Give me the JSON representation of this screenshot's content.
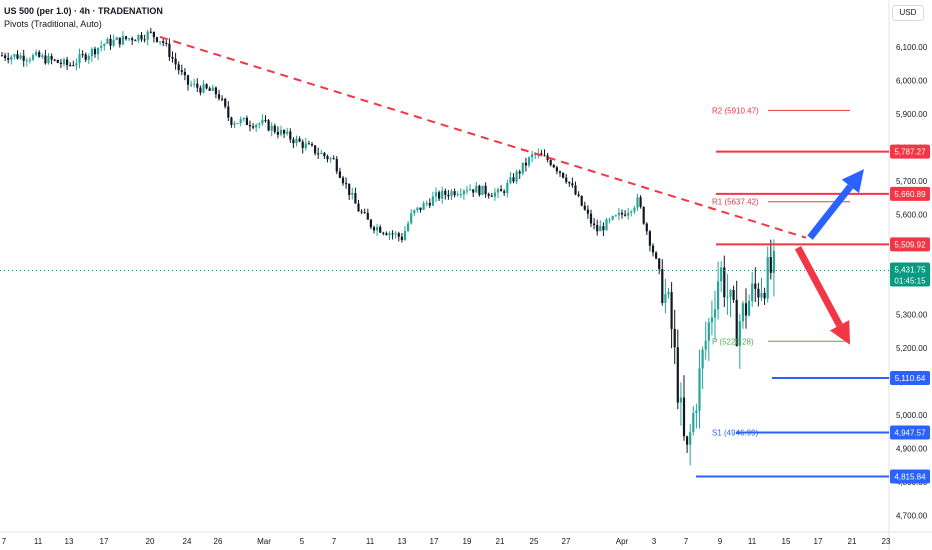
{
  "header": {
    "title": "US 500 (per 1.0) · 4h · TRADENATION",
    "subtitle": "Pivots (Traditional, Auto)"
  },
  "currency": "USD",
  "colors": {
    "up": "#26a69a",
    "down": "#131722",
    "trend": "#f23645",
    "resistance": "#f23645",
    "support": "#2962ff",
    "pivot": "#4caf50",
    "current": "#089981",
    "blue_arrow": "#2962ff",
    "red_arrow": "#f23645"
  },
  "chart_data": {
    "type": "candlestick",
    "title": "US 500 (per 1.0) · 4h · TRADENATION",
    "xlabel": "",
    "ylabel": "",
    "ylim": [
      4630,
      6220
    ],
    "x_ticks": [
      "7",
      "11",
      "13",
      "17",
      "20",
      "24",
      "26",
      "Mar",
      "5",
      "7",
      "11",
      "13",
      "17",
      "19",
      "21",
      "25",
      "27",
      "Apr",
      "3",
      "7",
      "9",
      "11",
      "15",
      "17",
      "21",
      "23"
    ],
    "y_ticks": [
      "6,100.00",
      "6,000.00",
      "5,900.00",
      "5,800.00",
      "5,700.00",
      "5,600.00",
      "5,500.00",
      "5,400.00",
      "5,300.00",
      "5,200.00",
      "5,100.00",
      "5,000.00",
      "4,900.00",
      "4,800.00",
      "4,700.00"
    ],
    "grid": false,
    "price_path": [
      [
        "7",
        6075
      ],
      [
        "11",
        6070
      ],
      [
        "13",
        6045
      ],
      [
        "17",
        6110
      ],
      [
        "20",
        6140
      ],
      [
        "21",
        6120
      ],
      [
        "24",
        5990
      ],
      [
        "26",
        5960
      ],
      [
        "27",
        5880
      ],
      [
        "Mar",
        5870
      ],
      [
        "5",
        5810
      ],
      [
        "7",
        5760
      ],
      [
        "10",
        5620
      ],
      [
        "11",
        5570
      ],
      [
        "13",
        5530
      ],
      [
        "14",
        5600
      ],
      [
        "17",
        5650
      ],
      [
        "19",
        5680
      ],
      [
        "21",
        5660
      ],
      [
        "25",
        5780
      ],
      [
        "26",
        5760
      ],
      [
        "27",
        5710
      ],
      [
        "31",
        5550
      ],
      [
        "Apr",
        5600
      ],
      [
        "2",
        5640
      ],
      [
        "3",
        5480
      ],
      [
        "4",
        5300
      ],
      [
        "7",
        4860
      ],
      [
        "8",
        5180
      ],
      [
        "9",
        5440
      ],
      [
        "10",
        5260
      ],
      [
        "11",
        5360
      ],
      [
        "14",
        5432
      ]
    ],
    "last_price": 5431.75,
    "countdown": "01:45:15",
    "trendline": {
      "from": [
        "20",
        6130
      ],
      "to": [
        "14",
        5530
      ]
    },
    "levels": [
      {
        "name": "R2",
        "label": "R2 (5910.47)",
        "value": 5910.47,
        "kind": "pivot-res"
      },
      {
        "name": "R1",
        "label": "R1 (5637.42)",
        "value": 5637.42,
        "kind": "pivot-res"
      },
      {
        "name": "P",
        "label": "P (5220.28)",
        "value": 5220.28,
        "kind": "pivot"
      },
      {
        "name": "S1",
        "label": "S1 (4946.99)",
        "value": 4946.99,
        "kind": "pivot-sup"
      },
      {
        "name": "res-1",
        "label": "5,787.27",
        "value": 5787.27,
        "kind": "resistance"
      },
      {
        "name": "res-2",
        "label": "5,660.89",
        "value": 5660.89,
        "kind": "resistance"
      },
      {
        "name": "res-3",
        "label": "5,509.92",
        "value": 5509.92,
        "kind": "resistance"
      },
      {
        "name": "sup-1",
        "label": "5,110.64",
        "value": 5110.64,
        "kind": "support"
      },
      {
        "name": "sup-2",
        "label": "4,947.57",
        "value": 4947.57,
        "kind": "support"
      },
      {
        "name": "sup-3",
        "label": "4,815.84",
        "value": 4815.84,
        "kind": "support"
      }
    ],
    "arrows": [
      {
        "name": "bullish-arrow",
        "direction": "up",
        "from": 5530,
        "to": 5735
      },
      {
        "name": "bearish-arrow",
        "direction": "down",
        "from": 5500,
        "to": 5210
      }
    ]
  }
}
